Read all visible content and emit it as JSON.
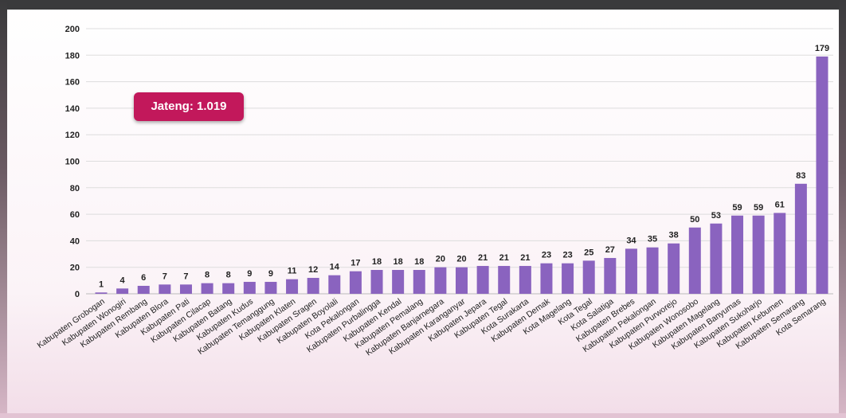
{
  "callout": {
    "text": "Jateng: 1.019",
    "color": "#c2185b"
  },
  "colors": {
    "bar": "#8a63bf",
    "grid": "#dddddd"
  },
  "chart_data": {
    "type": "bar",
    "title": "",
    "xlabel": "",
    "ylabel": "",
    "ylim": [
      0,
      200
    ],
    "yticks": [
      0,
      20,
      40,
      60,
      80,
      100,
      120,
      140,
      160,
      180,
      200
    ],
    "grid": true,
    "categories": [
      "Kabupaten Grobogan",
      "Kabupaten Wonogiri",
      "Kabupaten Rembang",
      "Kabupaten Blora",
      "Kabupaten Pati",
      "Kabupaten Cilacap",
      "Kabupaten Batang",
      "Kabupaten Kudus",
      "Kabupaten Temanggung",
      "Kabupaten Klaten",
      "Kabupaten Sragen",
      "Kabupaten Boyolali",
      "Kota Pekalongan",
      "Kabupaten Purbalingga",
      "Kabupaten Kendal",
      "Kabupaten Pemalang",
      "Kabupaten Banjarnegara",
      "Kabupaten Karanganyar",
      "Kabupaten Jepara",
      "Kabupaten Tegal",
      "Kota Surakarta",
      "Kabupaten Demak",
      "Kota Magelang",
      "Kota Tegal",
      "Kota Salatiga",
      "Kabupaten Brebes",
      "Kabupaten Pekalongan",
      "Kabupaten Purworejo",
      "Kabupaten Wonosobo",
      "Kabupaten Magelang",
      "Kabupaten Banyumas",
      "Kabupaten Sukoharjo",
      "Kabupaten Kebumen",
      "Kabupaten Semarang",
      "Kota Semarang"
    ],
    "values": [
      1,
      4,
      6,
      7,
      7,
      8,
      8,
      9,
      9,
      11,
      12,
      14,
      17,
      18,
      18,
      18,
      20,
      20,
      21,
      21,
      21,
      23,
      23,
      25,
      27,
      34,
      35,
      38,
      50,
      53,
      59,
      59,
      61,
      83,
      179
    ]
  }
}
